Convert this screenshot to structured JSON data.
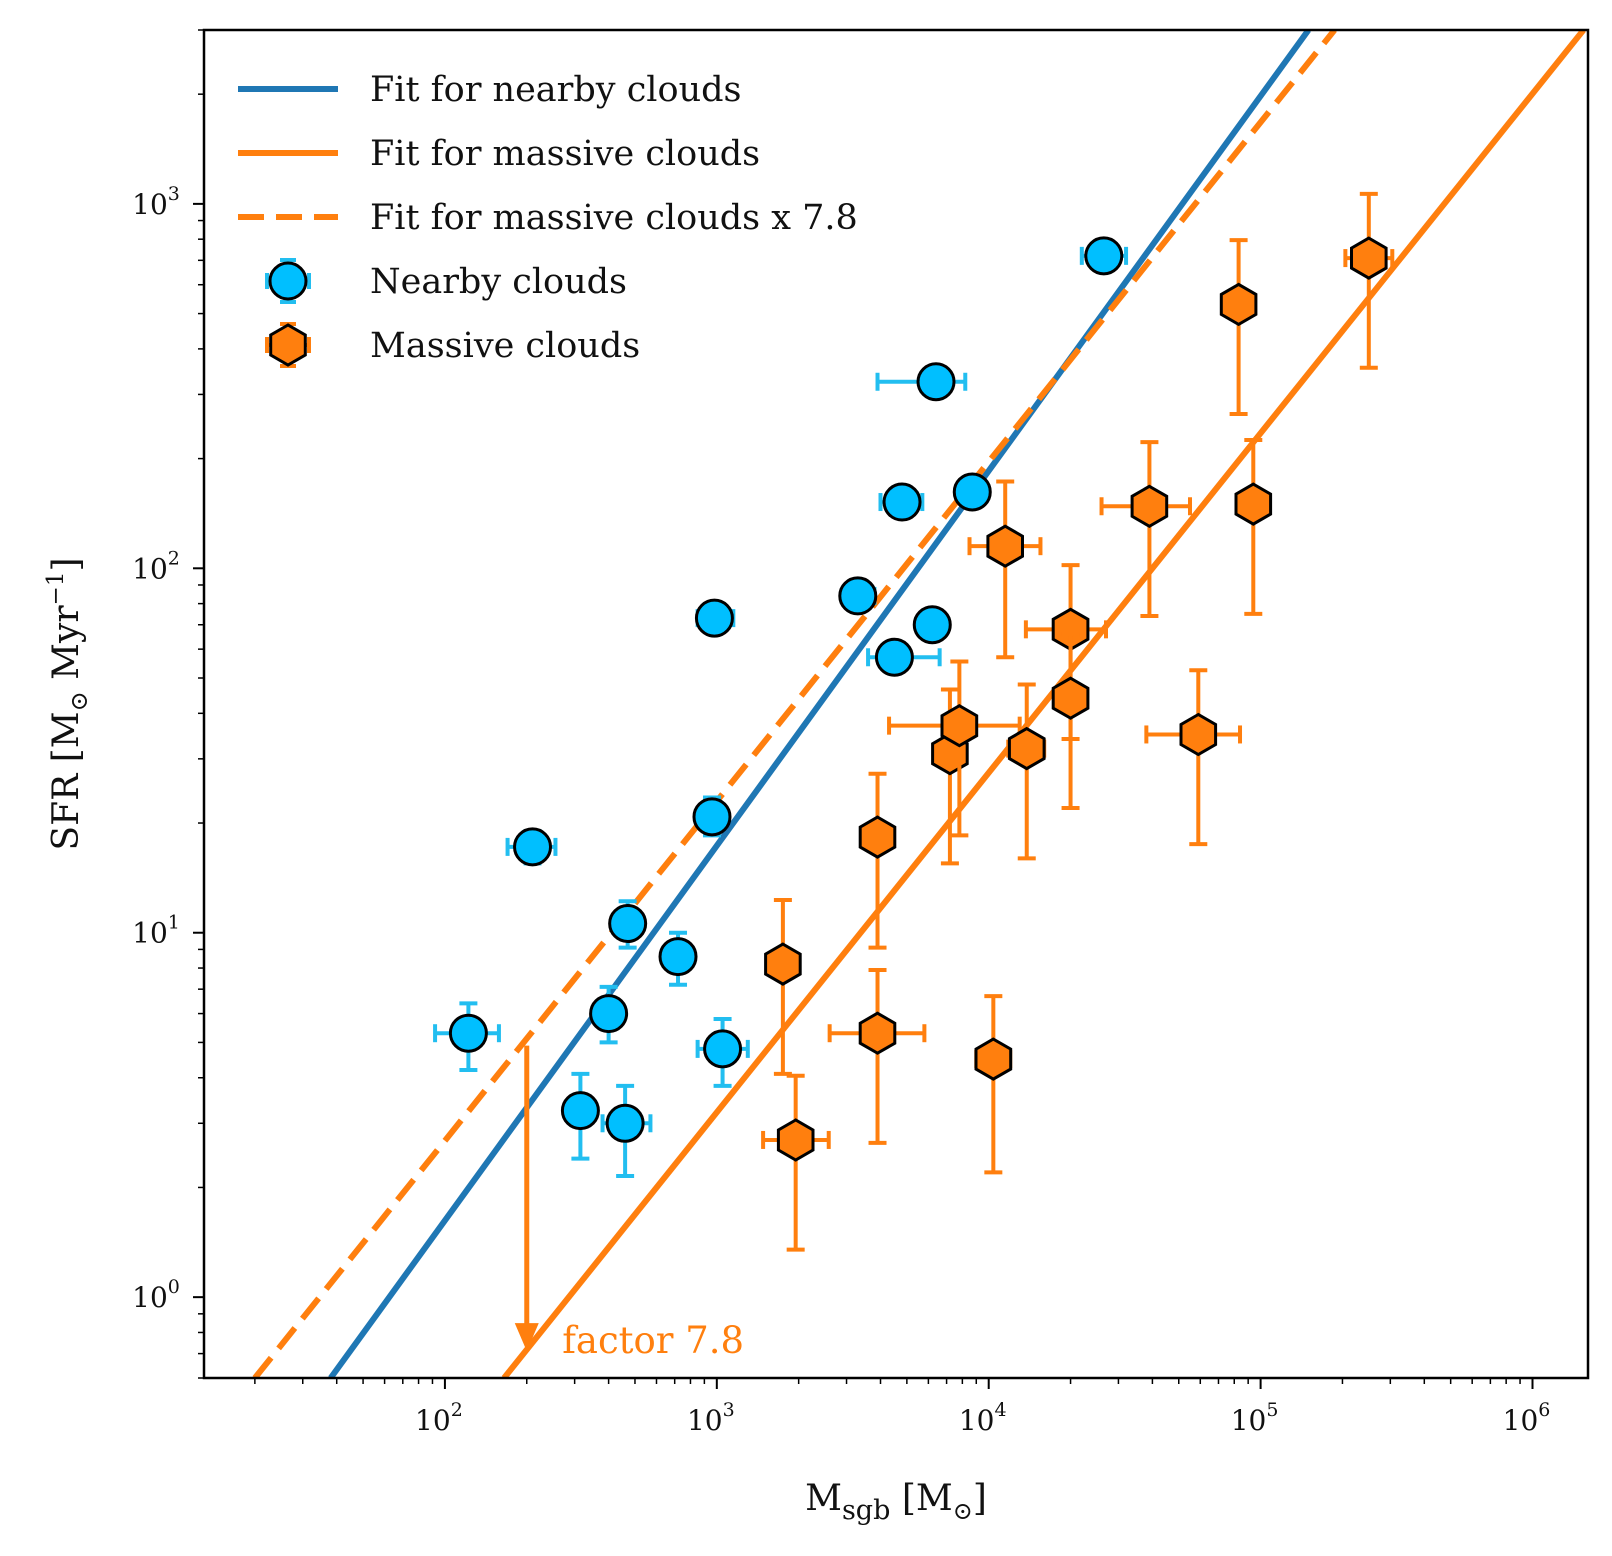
{
  "chart_data": {
    "type": "scatter",
    "xscale": "log",
    "yscale": "log",
    "xlim": [
      13,
      1600000
    ],
    "ylim": [
      0.6,
      3000
    ],
    "grid": false,
    "legend_position": "top-left",
    "xlabel": {
      "main": "M",
      "sub": "sgb",
      "rest": " [M",
      "sun": "⊙",
      "close": "]"
    },
    "ylabel": {
      "main": "SFR [M",
      "sun": "⊙",
      "unit": " Myr",
      "exp": "−1",
      "close": "]"
    },
    "x_ticks": [
      {
        "value": 100,
        "base": "10",
        "exp": "2"
      },
      {
        "value": 1000,
        "base": "10",
        "exp": "3"
      },
      {
        "value": 10000,
        "base": "10",
        "exp": "4"
      },
      {
        "value": 100000,
        "base": "10",
        "exp": "5"
      },
      {
        "value": 1000000,
        "base": "10",
        "exp": "6"
      }
    ],
    "y_ticks": [
      {
        "value": 1,
        "base": "10",
        "exp": "0"
      },
      {
        "value": 10,
        "base": "10",
        "exp": "1"
      },
      {
        "value": 100,
        "base": "10",
        "exp": "2"
      },
      {
        "value": 1000,
        "base": "10",
        "exp": "3"
      }
    ],
    "lines": [
      {
        "name": "Fit for nearby clouds",
        "color": "#1f77b4",
        "style": "solid",
        "points": [
          [
            38,
            0.6
          ],
          [
            150000,
            3000
          ]
        ]
      },
      {
        "name": "Fit for massive clouds",
        "color": "#ff7f0e",
        "style": "solid",
        "points": [
          [
            165,
            0.6
          ],
          [
            1540000,
            3000
          ]
        ]
      },
      {
        "name": "Fit for massive clouds x 7.8",
        "color": "#ff7f0e",
        "style": "dashed",
        "points": [
          [
            20,
            0.6
          ],
          [
            187000,
            3000
          ]
        ]
      }
    ],
    "series": [
      {
        "name": "Nearby clouds",
        "marker": "circle",
        "color": "#00bfff",
        "errbar_color": "#22bef0",
        "points": [
          {
            "x": 122,
            "y": 5.3,
            "xlo": 92,
            "xhi": 158,
            "ylo": 4.2,
            "yhi": 6.4
          },
          {
            "x": 210,
            "y": 17.2,
            "xlo": 170,
            "xhi": 255,
            "ylo": 15.5,
            "yhi": 19.0
          },
          {
            "x": 315,
            "y": 3.25,
            "xlo": 290,
            "xhi": 340,
            "ylo": 2.4,
            "yhi": 4.1
          },
          {
            "x": 400,
            "y": 6.0,
            "xlo": 370,
            "xhi": 430,
            "ylo": 5.0,
            "yhi": 7.1
          },
          {
            "x": 460,
            "y": 3.0,
            "xlo": 380,
            "xhi": 570,
            "ylo": 2.15,
            "yhi": 3.8
          },
          {
            "x": 470,
            "y": 10.6,
            "xlo": 420,
            "xhi": 520,
            "ylo": 9.1,
            "yhi": 12.2
          },
          {
            "x": 720,
            "y": 8.6,
            "xlo": 660,
            "xhi": 790,
            "ylo": 7.2,
            "yhi": 10.0
          },
          {
            "x": 960,
            "y": 20.8,
            "xlo": 880,
            "xhi": 1050,
            "ylo": 18.5,
            "yhi": 23.5
          },
          {
            "x": 980,
            "y": 73,
            "xlo": 850,
            "xhi": 1150,
            "ylo": 69,
            "yhi": 77
          },
          {
            "x": 1050,
            "y": 4.8,
            "xlo": 850,
            "xhi": 1300,
            "ylo": 3.8,
            "yhi": 5.8
          },
          {
            "x": 3300,
            "y": 84,
            "xlo": 2900,
            "xhi": 3800,
            "ylo": 79,
            "yhi": 89
          },
          {
            "x": 4500,
            "y": 57,
            "xlo": 3600,
            "xhi": 6600,
            "ylo": 54,
            "yhi": 60
          },
          {
            "x": 4800,
            "y": 152,
            "xlo": 4000,
            "xhi": 5700,
            "ylo": 145,
            "yhi": 159
          },
          {
            "x": 6200,
            "y": 70,
            "xlo": 5500,
            "xhi": 7000,
            "ylo": 66,
            "yhi": 74
          },
          {
            "x": 6400,
            "y": 325,
            "xlo": 3900,
            "xhi": 8200,
            "ylo": 310,
            "yhi": 340
          },
          {
            "x": 8700,
            "y": 162,
            "xlo": 8000,
            "xhi": 9500,
            "ylo": 155,
            "yhi": 170
          },
          {
            "x": 26500,
            "y": 720,
            "xlo": 22000,
            "xhi": 32000,
            "ylo": 690,
            "yhi": 750
          }
        ]
      },
      {
        "name": "Massive clouds",
        "marker": "hexagon",
        "color": "#ff7f0e",
        "errbar_color": "#ff7f0e",
        "points": [
          {
            "x": 1750,
            "y": 8.2,
            "xlo": 1550,
            "xhi": 1950,
            "ylo": 4.1,
            "yhi": 12.3
          },
          {
            "x": 1950,
            "y": 2.7,
            "xlo": 1480,
            "xhi": 2580,
            "ylo": 1.35,
            "yhi": 4.05
          },
          {
            "x": 3900,
            "y": 18.3,
            "xlo": 3600,
            "xhi": 4200,
            "ylo": 9.1,
            "yhi": 27.3
          },
          {
            "x": 3900,
            "y": 5.3,
            "xlo": 2600,
            "xhi": 5800,
            "ylo": 2.65,
            "yhi": 7.9
          },
          {
            "x": 7200,
            "y": 31,
            "xlo": 6400,
            "xhi": 8000,
            "ylo": 15.5,
            "yhi": 46.5
          },
          {
            "x": 7800,
            "y": 37,
            "xlo": 4300,
            "xhi": 13000,
            "ylo": 18.5,
            "yhi": 55.5
          },
          {
            "x": 10400,
            "y": 4.5,
            "xlo": 9000,
            "xhi": 12000,
            "ylo": 2.2,
            "yhi": 6.7
          },
          {
            "x": 11500,
            "y": 115,
            "xlo": 8500,
            "xhi": 15500,
            "ylo": 57,
            "yhi": 173
          },
          {
            "x": 13800,
            "y": 32,
            "xlo": 11800,
            "xhi": 16000,
            "ylo": 16,
            "yhi": 48
          },
          {
            "x": 20000,
            "y": 68,
            "xlo": 13700,
            "xhi": 27000,
            "ylo": 34,
            "yhi": 102
          },
          {
            "x": 20000,
            "y": 44,
            "xlo": 17500,
            "xhi": 23000,
            "ylo": 22,
            "yhi": 66
          },
          {
            "x": 39000,
            "y": 148,
            "xlo": 26000,
            "xhi": 55000,
            "ylo": 74,
            "yhi": 222
          },
          {
            "x": 59000,
            "y": 35,
            "xlo": 38000,
            "xhi": 84000,
            "ylo": 17.5,
            "yhi": 52.5
          },
          {
            "x": 83000,
            "y": 530,
            "xlo": 78000,
            "xhi": 88000,
            "ylo": 265,
            "yhi": 795
          },
          {
            "x": 94000,
            "y": 150,
            "xlo": 82000,
            "xhi": 108000,
            "ylo": 75,
            "yhi": 225
          },
          {
            "x": 250000,
            "y": 710,
            "xlo": 205000,
            "xhi": 305000,
            "ylo": 355,
            "yhi": 1065
          }
        ]
      }
    ],
    "legend": [
      {
        "label": "Fit for nearby clouds",
        "kind": "line",
        "color": "#1f77b4",
        "style": "solid"
      },
      {
        "label": "Fit for massive clouds",
        "kind": "line",
        "color": "#ff7f0e",
        "style": "solid"
      },
      {
        "label": "Fit for massive clouds x 7.8",
        "kind": "line",
        "color": "#ff7f0e",
        "style": "dashed"
      },
      {
        "label": "Nearby clouds",
        "kind": "marker",
        "marker": "circle",
        "color": "#00bfff",
        "errbar_color": "#22bef0"
      },
      {
        "label": "Massive clouds",
        "kind": "marker",
        "marker": "hexagon",
        "color": "#ff7f0e",
        "errbar_color": "#ff7f0e"
      }
    ],
    "annotation": {
      "text": "factor 7.8",
      "color": "#ff7f0e",
      "arrow_x": 200,
      "arrow_from_y": 4.9,
      "arrow_to_y": 0.72,
      "text_x": 270,
      "text_y": 0.72
    }
  }
}
